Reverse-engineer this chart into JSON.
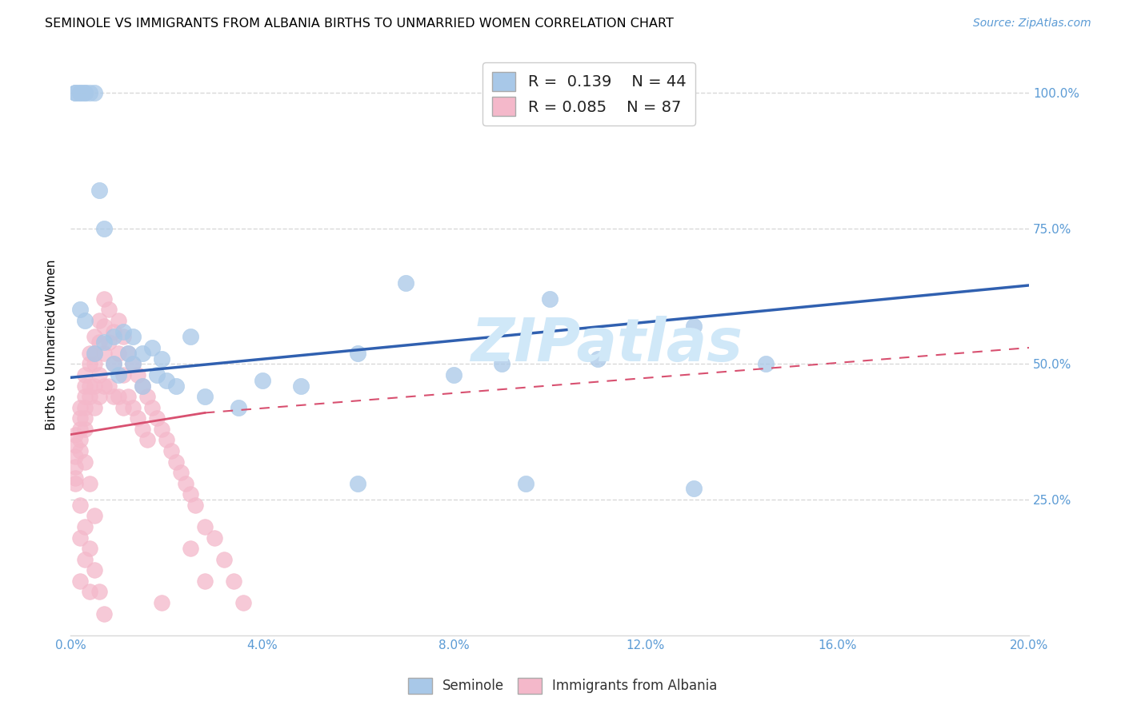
{
  "title": "SEMINOLE VS IMMIGRANTS FROM ALBANIA BIRTHS TO UNMARRIED WOMEN CORRELATION CHART",
  "source": "Source: ZipAtlas.com",
  "ylabel": "Births to Unmarried Women",
  "legend_blue_label": "Seminole",
  "legend_pink_label": "Immigrants from Albania",
  "r_blue": "0.139",
  "n_blue": "44",
  "r_pink": "0.085",
  "n_pink": "87",
  "blue_color": "#a8c8e8",
  "blue_edge_color": "#7baad4",
  "pink_color": "#f4b8ca",
  "pink_edge_color": "#e8849c",
  "blue_line_color": "#3060b0",
  "pink_line_color": "#d85070",
  "watermark": "ZIPatlas",
  "watermark_color": "#d0e8f8",
  "xmin": 0.0,
  "xmax": 0.2,
  "ymin": 0.0,
  "ymax": 1.07,
  "xticks": [
    0.0,
    0.04,
    0.08,
    0.12,
    0.16,
    0.2
  ],
  "xticklabels": [
    "0.0%",
    "4.0%",
    "8.0%",
    "12.0%",
    "16.0%",
    "20.0%"
  ],
  "yticks": [
    0.25,
    0.5,
    0.75,
    1.0
  ],
  "yticklabels": [
    "25.0%",
    "50.0%",
    "75.0%",
    "100.0%"
  ],
  "grid_color": "#d8d8d8",
  "axis_label_color": "#5b9bd5",
  "title_fontsize": 11.5,
  "tick_fontsize": 11,
  "ylabel_fontsize": 11,
  "blue_trend_x0": 0.0,
  "blue_trend_y0": 0.475,
  "blue_trend_x1": 0.2,
  "blue_trend_y1": 0.645,
  "pink_trend_solid_x0": 0.0,
  "pink_trend_solid_y0": 0.37,
  "pink_trend_solid_x1": 0.028,
  "pink_trend_solid_y1": 0.41,
  "pink_trend_dash_x0": 0.028,
  "pink_trend_dash_y0": 0.41,
  "pink_trend_dash_x1": 0.2,
  "pink_trend_dash_y1": 0.53,
  "blue_points_x": [
    0.001,
    0.001,
    0.002,
    0.002,
    0.003,
    0.003,
    0.004,
    0.005,
    0.006,
    0.007,
    0.009,
    0.011,
    0.013,
    0.015,
    0.017,
    0.019,
    0.002,
    0.003,
    0.005,
    0.007,
    0.009,
    0.01,
    0.012,
    0.013,
    0.015,
    0.018,
    0.02,
    0.022,
    0.025,
    0.028,
    0.035,
    0.04,
    0.048,
    0.06,
    0.07,
    0.08,
    0.09,
    0.1,
    0.11,
    0.13,
    0.145,
    0.095,
    0.13,
    0.06
  ],
  "blue_points_y": [
    1.0,
    1.0,
    1.0,
    1.0,
    1.0,
    1.0,
    1.0,
    1.0,
    0.82,
    0.75,
    0.55,
    0.56,
    0.55,
    0.52,
    0.53,
    0.51,
    0.6,
    0.58,
    0.52,
    0.54,
    0.5,
    0.48,
    0.52,
    0.5,
    0.46,
    0.48,
    0.47,
    0.46,
    0.55,
    0.44,
    0.42,
    0.47,
    0.46,
    0.52,
    0.65,
    0.48,
    0.5,
    0.62,
    0.51,
    0.27,
    0.5,
    0.28,
    0.57,
    0.28
  ],
  "pink_points_x": [
    0.001,
    0.001,
    0.001,
    0.001,
    0.001,
    0.002,
    0.002,
    0.002,
    0.002,
    0.002,
    0.003,
    0.003,
    0.003,
    0.003,
    0.003,
    0.003,
    0.004,
    0.004,
    0.004,
    0.004,
    0.005,
    0.005,
    0.005,
    0.005,
    0.005,
    0.006,
    0.006,
    0.006,
    0.006,
    0.007,
    0.007,
    0.007,
    0.007,
    0.008,
    0.008,
    0.008,
    0.009,
    0.009,
    0.009,
    0.01,
    0.01,
    0.01,
    0.011,
    0.011,
    0.011,
    0.012,
    0.012,
    0.013,
    0.013,
    0.014,
    0.014,
    0.015,
    0.015,
    0.016,
    0.016,
    0.017,
    0.018,
    0.019,
    0.02,
    0.021,
    0.022,
    0.023,
    0.024,
    0.025,
    0.026,
    0.028,
    0.03,
    0.032,
    0.034,
    0.036,
    0.001,
    0.002,
    0.003,
    0.004,
    0.005,
    0.006,
    0.007,
    0.003,
    0.004,
    0.005,
    0.002,
    0.003,
    0.002,
    0.004,
    0.025,
    0.028,
    0.019
  ],
  "pink_points_y": [
    0.37,
    0.35,
    0.33,
    0.31,
    0.29,
    0.42,
    0.4,
    0.38,
    0.36,
    0.34,
    0.48,
    0.46,
    0.44,
    0.42,
    0.4,
    0.38,
    0.52,
    0.5,
    0.46,
    0.44,
    0.55,
    0.52,
    0.5,
    0.46,
    0.42,
    0.58,
    0.54,
    0.48,
    0.44,
    0.62,
    0.57,
    0.52,
    0.46,
    0.6,
    0.54,
    0.46,
    0.56,
    0.5,
    0.44,
    0.58,
    0.52,
    0.44,
    0.55,
    0.48,
    0.42,
    0.52,
    0.44,
    0.5,
    0.42,
    0.48,
    0.4,
    0.46,
    0.38,
    0.44,
    0.36,
    0.42,
    0.4,
    0.38,
    0.36,
    0.34,
    0.32,
    0.3,
    0.28,
    0.26,
    0.24,
    0.2,
    0.18,
    0.14,
    0.1,
    0.06,
    0.28,
    0.24,
    0.2,
    0.16,
    0.12,
    0.08,
    0.04,
    0.32,
    0.28,
    0.22,
    0.18,
    0.14,
    0.1,
    0.08,
    0.16,
    0.1,
    0.06
  ]
}
